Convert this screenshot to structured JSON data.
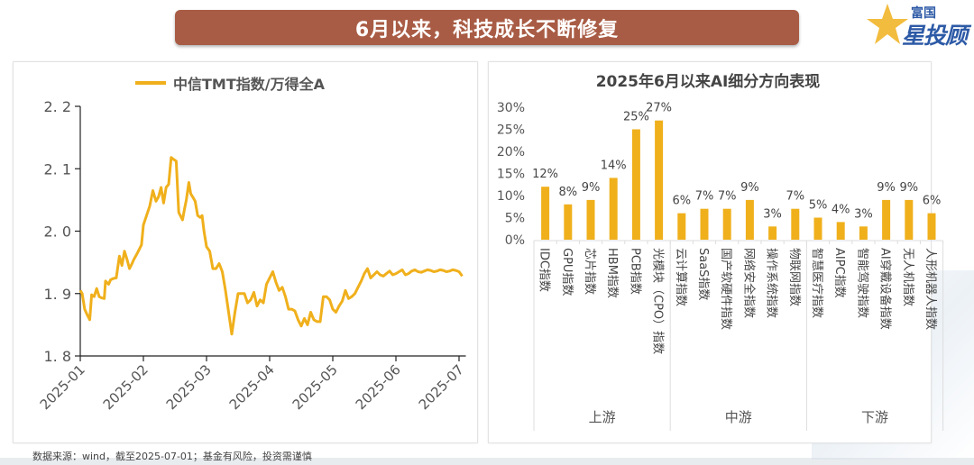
{
  "header": {
    "title": "6月以来，科技成长不断修复",
    "logo_top": "富国",
    "logo_main": "星投顾"
  },
  "footer": {
    "source": "数据来源：wind，截至2025-07-01；基金有风险，投资需谨慎"
  },
  "colors": {
    "accent": "#f0b01c",
    "title_bg": "#a95c45",
    "brand": "#2d5aa6"
  },
  "chart_data": [
    {
      "type": "line",
      "title": "",
      "legend": [
        "中信TMT指数/万得全A"
      ],
      "legend_position": "top",
      "xlabel": "",
      "ylabel": "",
      "ylim": [
        1.8,
        2.2
      ],
      "yticks": [
        "2. 2",
        "2. 1",
        "2. 0",
        "1. 9",
        "1. 8"
      ],
      "ytick_values": [
        2.2,
        2.1,
        2.0,
        1.9,
        1.8
      ],
      "xticks": [
        "2025-01",
        "2025-02",
        "2025-03",
        "2025-04",
        "2025-05",
        "2025-06",
        "2025-07"
      ],
      "xlim_months": [
        0,
        6.05
      ],
      "series": [
        {
          "name": "中信TMT指数/万得全A",
          "x": [
            0.0,
            0.03,
            0.07,
            0.1,
            0.15,
            0.18,
            0.22,
            0.26,
            0.3,
            0.34,
            0.38,
            0.4,
            0.45,
            0.48,
            0.52,
            0.57,
            0.62,
            0.66,
            0.7,
            0.74,
            0.78,
            0.82,
            0.85,
            0.89,
            0.93,
            0.97,
            1.0,
            1.05,
            1.1,
            1.15,
            1.2,
            1.24,
            1.28,
            1.32,
            1.36,
            1.4,
            1.44,
            1.48,
            1.52,
            1.56,
            1.6,
            1.62,
            1.65,
            1.68,
            1.72,
            1.75,
            1.78,
            1.82,
            1.86,
            1.9,
            1.93,
            1.96,
            2.0,
            2.05,
            2.1,
            2.15,
            2.2,
            2.25,
            2.3,
            2.35,
            2.4,
            2.45,
            2.5,
            2.55,
            2.6,
            2.65,
            2.7,
            2.75,
            2.8,
            2.85,
            2.9,
            2.95,
            3.0,
            3.05,
            3.1,
            3.15,
            3.2,
            3.25,
            3.3,
            3.35,
            3.4,
            3.45,
            3.5,
            3.55,
            3.6,
            3.65,
            3.7,
            3.75,
            3.8,
            3.85,
            3.9,
            3.95,
            4.0,
            4.05,
            4.1,
            4.15,
            4.2,
            4.25,
            4.3,
            4.35,
            4.4,
            4.45,
            4.5,
            4.55,
            4.6,
            4.65,
            4.7,
            4.75,
            4.8,
            4.85,
            4.9,
            4.95,
            5.0,
            5.05,
            5.1,
            5.15,
            5.2,
            5.25,
            5.3,
            5.35,
            5.4,
            5.45,
            5.5,
            5.55,
            5.6,
            5.65,
            5.7,
            5.75,
            5.8,
            5.85,
            5.9,
            5.95,
            6.0,
            6.05
          ],
          "y": [
            1.905,
            1.9,
            1.875,
            1.868,
            1.858,
            1.898,
            1.895,
            1.908,
            1.895,
            1.893,
            1.892,
            1.92,
            1.915,
            1.922,
            1.924,
            1.925,
            1.96,
            1.945,
            1.968,
            1.955,
            1.94,
            1.948,
            1.955,
            1.962,
            1.97,
            1.978,
            2.01,
            2.025,
            2.04,
            2.065,
            2.048,
            2.055,
            2.07,
            2.045,
            2.07,
            2.075,
            2.118,
            2.115,
            2.112,
            2.03,
            2.022,
            2.018,
            2.035,
            2.05,
            2.078,
            2.06,
            2.055,
            2.048,
            2.025,
            2.022,
            2.025,
            2.0,
            1.975,
            1.968,
            1.94,
            1.94,
            1.948,
            1.935,
            1.905,
            1.87,
            1.835,
            1.87,
            1.9,
            1.9,
            1.9,
            1.885,
            1.89,
            1.902,
            1.88,
            1.89,
            1.885,
            1.915,
            1.925,
            1.935,
            1.918,
            1.905,
            1.91,
            1.895,
            1.875,
            1.875,
            1.872,
            1.858,
            1.848,
            1.86,
            1.85,
            1.87,
            1.858,
            1.855,
            1.855,
            1.895,
            1.895,
            1.89,
            1.875,
            1.87,
            1.88,
            1.888,
            1.905,
            1.892,
            1.895,
            1.9,
            1.91,
            1.92,
            1.932,
            1.94,
            1.925,
            1.93,
            1.935,
            1.93,
            1.928,
            1.932,
            1.936,
            1.93,
            1.932,
            1.935,
            1.938,
            1.93,
            1.932,
            1.936,
            1.938,
            1.935,
            1.934,
            1.936,
            1.938,
            1.937,
            1.935,
            1.936,
            1.938,
            1.937,
            1.935,
            1.936,
            1.938,
            1.937,
            1.935,
            1.928
          ]
        }
      ]
    },
    {
      "type": "bar",
      "title": "2025年6月以来AI细分方向表现",
      "ylim": [
        0,
        30
      ],
      "yticks": [
        "30%",
        "25%",
        "20%",
        "15%",
        "10%",
        "5%",
        "0%"
      ],
      "ytick_values": [
        30,
        25,
        20,
        15,
        10,
        5,
        0
      ],
      "categories": [
        "IDC指数",
        "GPU指数",
        "芯片指数",
        "HBM指数",
        "PCB指数",
        "光模块（CPO）指数",
        "云计算指数",
        "SaaS指数",
        "国产软硬件指数",
        "网络安全指数",
        "操作系统指数",
        "物联网指数",
        "智慧医疗指数",
        "AIPC指数",
        "智能驾驶指数",
        "AI穿戴设备指数",
        "无人机指数",
        "人形机器人指数"
      ],
      "values": [
        12,
        8,
        9,
        14,
        25,
        27,
        6,
        7,
        7,
        9,
        3,
        7,
        5,
        4,
        3,
        9,
        9,
        6
      ],
      "data_labels": [
        "12%",
        "8%",
        "9%",
        "14%",
        "25%",
        "27%",
        "6%",
        "7%",
        "7%",
        "9%",
        "3%",
        "7%",
        "5%",
        "4%",
        "3%",
        "9%",
        "9%",
        "6%"
      ],
      "groups": [
        {
          "name": "上游",
          "count": 6
        },
        {
          "name": "中游",
          "count": 6
        },
        {
          "name": "下游",
          "count": 6
        }
      ]
    }
  ]
}
